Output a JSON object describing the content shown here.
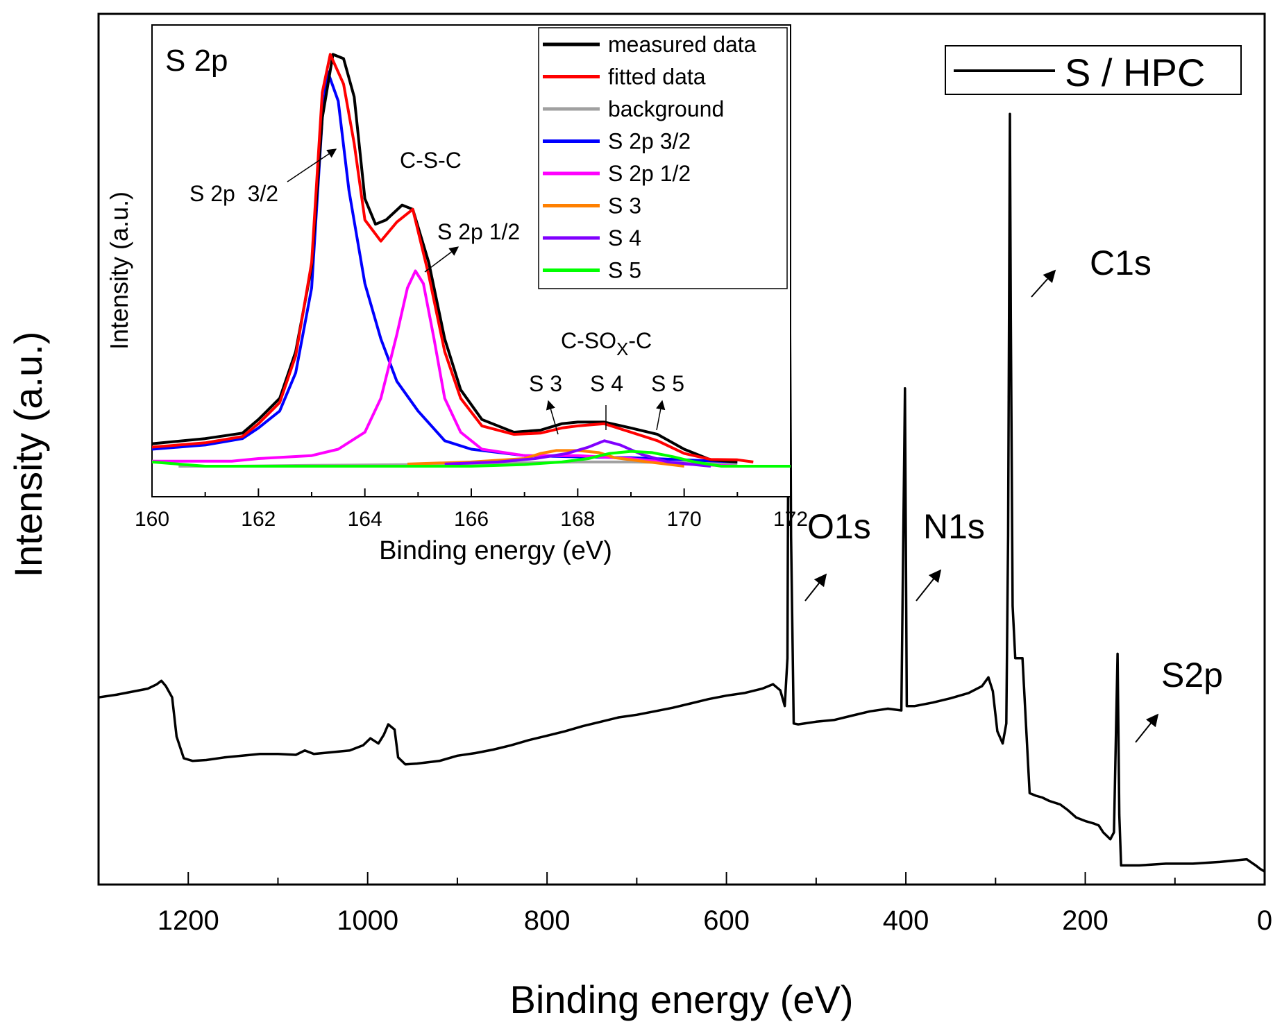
{
  "chart_data": [
    {
      "id": "survey",
      "type": "line",
      "xlabel": "Binding energy (eV)",
      "ylabel": "Intensity (a.u.)",
      "xlim": [
        1300,
        0
      ],
      "ylim": [
        0,
        100
      ],
      "xticks": [
        1200,
        1000,
        800,
        600,
        400,
        200,
        0
      ],
      "legend": {
        "position": "top-right",
        "entries": [
          {
            "label": "S / HPC",
            "color": "#000000"
          }
        ]
      },
      "series": [
        {
          "name": "S / HPC",
          "color": "#000000",
          "points": [
            [
              1300,
              21.5
            ],
            [
              1280,
              21.8
            ],
            [
              1260,
              22.2
            ],
            [
              1245,
              22.5
            ],
            [
              1235,
              23.0
            ],
            [
              1230,
              23.4
            ],
            [
              1225,
              22.8
            ],
            [
              1218,
              21.5
            ],
            [
              1213,
              17.0
            ],
            [
              1205,
              14.5
            ],
            [
              1195,
              14.2
            ],
            [
              1180,
              14.3
            ],
            [
              1160,
              14.6
            ],
            [
              1140,
              14.8
            ],
            [
              1120,
              15.0
            ],
            [
              1100,
              15.0
            ],
            [
              1080,
              14.9
            ],
            [
              1070,
              15.4
            ],
            [
              1060,
              15.0
            ],
            [
              1040,
              15.2
            ],
            [
              1020,
              15.4
            ],
            [
              1005,
              16.0
            ],
            [
              997,
              16.8
            ],
            [
              988,
              16.2
            ],
            [
              982,
              17.2
            ],
            [
              977,
              18.4
            ],
            [
              970,
              17.8
            ],
            [
              966,
              14.6
            ],
            [
              958,
              13.8
            ],
            [
              945,
              13.9
            ],
            [
              920,
              14.2
            ],
            [
              900,
              14.8
            ],
            [
              880,
              15.1
            ],
            [
              860,
              15.5
            ],
            [
              840,
              16.0
            ],
            [
              820,
              16.6
            ],
            [
              800,
              17.1
            ],
            [
              780,
              17.6
            ],
            [
              760,
              18.2
            ],
            [
              740,
              18.7
            ],
            [
              720,
              19.2
            ],
            [
              700,
              19.5
            ],
            [
              680,
              19.9
            ],
            [
              660,
              20.3
            ],
            [
              640,
              20.8
            ],
            [
              620,
              21.3
            ],
            [
              600,
              21.7
            ],
            [
              580,
              22.0
            ],
            [
              560,
              22.5
            ],
            [
              548,
              23.0
            ],
            [
              540,
              22.3
            ],
            [
              535,
              20.5
            ],
            [
              532,
              26.0
            ],
            [
              530,
              82.0
            ],
            [
              528,
              40.0
            ],
            [
              525,
              18.5
            ],
            [
              520,
              18.4
            ],
            [
              500,
              18.7
            ],
            [
              480,
              18.9
            ],
            [
              460,
              19.4
            ],
            [
              440,
              19.9
            ],
            [
              420,
              20.2
            ],
            [
              405,
              20.0
            ],
            [
              401,
              57.0
            ],
            [
              399,
              20.5
            ],
            [
              390,
              20.5
            ],
            [
              370,
              20.9
            ],
            [
              350,
              21.4
            ],
            [
              330,
              22.0
            ],
            [
              315,
              22.8
            ],
            [
              308,
              23.8
            ],
            [
              303,
              22.2
            ],
            [
              298,
              17.6
            ],
            [
              292,
              16.2
            ],
            [
              288,
              18.5
            ],
            [
              286,
              40.0
            ],
            [
              284,
              88.5
            ],
            [
              283,
              65.0
            ],
            [
              281,
              32.0
            ],
            [
              278,
              26.0
            ],
            [
              270,
              26.0
            ],
            [
              262,
              10.5
            ],
            [
              255,
              10.2
            ],
            [
              248,
              10.0
            ],
            [
              240,
              9.6
            ],
            [
              228,
              9.2
            ],
            [
              220,
              8.6
            ],
            [
              210,
              7.7
            ],
            [
              200,
              7.3
            ],
            [
              190,
              7.0
            ],
            [
              185,
              6.8
            ],
            [
              180,
              6.0
            ],
            [
              172,
              5.2
            ],
            [
              168,
              6.0
            ],
            [
              164,
              26.5
            ],
            [
              162,
              8.0
            ],
            [
              160,
              2.2
            ],
            [
              140,
              2.2
            ],
            [
              110,
              2.4
            ],
            [
              80,
              2.4
            ],
            [
              50,
              2.6
            ],
            [
              30,
              2.8
            ],
            [
              20,
              2.9
            ],
            [
              10,
              2.2
            ],
            [
              5,
              1.8
            ],
            [
              0,
              1.5
            ]
          ]
        }
      ],
      "annotations": [
        {
          "label": "O1s"
        },
        {
          "label": "N1s"
        },
        {
          "label": "C1s"
        },
        {
          "label": "S2p"
        }
      ]
    },
    {
      "id": "inset",
      "type": "line",
      "title": "S 2p",
      "xlabel": "Binding energy (eV)",
      "ylabel": "Intensity (a.u.)",
      "xlim": [
        160,
        172
      ],
      "ylim": [
        0,
        100
      ],
      "xticks": [
        160,
        162,
        164,
        166,
        168,
        170,
        172
      ],
      "legend": {
        "position": "top-right"
      },
      "series": [
        {
          "name": "measured data",
          "color": "#000000",
          "points": [
            [
              160,
              5.3
            ],
            [
              161,
              6.5
            ],
            [
              161.7,
              7.8
            ],
            [
              162,
              11.0
            ],
            [
              162.4,
              16.0
            ],
            [
              162.7,
              27.0
            ],
            [
              163.0,
              47.0
            ],
            [
              163.2,
              82.0
            ],
            [
              163.4,
              97.0
            ],
            [
              163.6,
              96.0
            ],
            [
              163.8,
              87.0
            ],
            [
              164.0,
              63.0
            ],
            [
              164.2,
              57.0
            ],
            [
              164.4,
              58.0
            ],
            [
              164.7,
              61.5
            ],
            [
              164.9,
              60.5
            ],
            [
              165.2,
              48.0
            ],
            [
              165.5,
              30.0
            ],
            [
              165.8,
              18.0
            ],
            [
              166.2,
              11.0
            ],
            [
              166.8,
              8.0
            ],
            [
              167.3,
              8.5
            ],
            [
              167.7,
              10.0
            ],
            [
              168.0,
              10.4
            ],
            [
              168.5,
              10.4
            ],
            [
              169.0,
              9.0
            ],
            [
              169.5,
              7.5
            ],
            [
              170.0,
              4.0
            ],
            [
              170.5,
              1.5
            ],
            [
              171,
              1.0
            ]
          ]
        },
        {
          "name": "fitted data",
          "color": "#ff0000",
          "points": [
            [
              160,
              4.5
            ],
            [
              161,
              5.5
            ],
            [
              161.7,
              7.0
            ],
            [
              162,
              10.0
            ],
            [
              162.4,
              15.0
            ],
            [
              162.7,
              26.0
            ],
            [
              163.0,
              48.0
            ],
            [
              163.2,
              88.0
            ],
            [
              163.35,
              97.0
            ],
            [
              163.6,
              90.0
            ],
            [
              163.8,
              76.0
            ],
            [
              164.0,
              58.0
            ],
            [
              164.3,
              53.0
            ],
            [
              164.6,
              57.5
            ],
            [
              164.9,
              60.5
            ],
            [
              165.2,
              45.0
            ],
            [
              165.5,
              27.0
            ],
            [
              165.8,
              16.0
            ],
            [
              166.2,
              9.5
            ],
            [
              166.8,
              7.5
            ],
            [
              167.3,
              7.8
            ],
            [
              167.7,
              9.0
            ],
            [
              168.0,
              9.5
            ],
            [
              168.5,
              10.0
            ],
            [
              169.0,
              8.0
            ],
            [
              169.5,
              6.0
            ],
            [
              170.0,
              3.0
            ],
            [
              170.5,
              1.6
            ],
            [
              171,
              1.5
            ],
            [
              171.3,
              1.0
            ]
          ]
        },
        {
          "name": "background",
          "color": "#a0a0a0",
          "points": [
            [
              160.5,
              0.0
            ],
            [
              161.5,
              0.0
            ],
            [
              163,
              0.2
            ],
            [
              165,
              0.4
            ],
            [
              167,
              0.8
            ],
            [
              168,
              1.0
            ],
            [
              169,
              1.0
            ],
            [
              170,
              0.8
            ],
            [
              171,
              0.5
            ]
          ]
        },
        {
          "name": "S 2p  3/2",
          "color": "#0000ff",
          "points": [
            [
              160,
              4.0
            ],
            [
              161,
              5.0
            ],
            [
              161.7,
              6.5
            ],
            [
              162,
              9.0
            ],
            [
              162.4,
              13.0
            ],
            [
              162.7,
              22.0
            ],
            [
              163.0,
              42.0
            ],
            [
              163.2,
              82.0
            ],
            [
              163.3,
              93.0
            ],
            [
              163.5,
              86.0
            ],
            [
              163.7,
              65.0
            ],
            [
              164.0,
              43.0
            ],
            [
              164.3,
              30.0
            ],
            [
              164.6,
              20.0
            ],
            [
              165.0,
              13.0
            ],
            [
              165.5,
              6.0
            ],
            [
              166,
              4.0
            ],
            [
              167,
              2.5
            ],
            [
              168,
              2.2
            ],
            [
              169,
              2.0
            ],
            [
              170,
              1.5
            ],
            [
              171,
              1.0
            ]
          ]
        },
        {
          "name": "S 2p  1/2",
          "color": "#ff00ff",
          "points": [
            [
              160,
              1.2
            ],
            [
              161.5,
              1.2
            ],
            [
              162,
              1.8
            ],
            [
              163,
              2.5
            ],
            [
              163.5,
              4.0
            ],
            [
              164,
              8.0
            ],
            [
              164.3,
              16.0
            ],
            [
              164.6,
              31.0
            ],
            [
              164.8,
              42.0
            ],
            [
              164.95,
              46.0
            ],
            [
              165.1,
              43.0
            ],
            [
              165.3,
              30.0
            ],
            [
              165.5,
              16.0
            ],
            [
              165.8,
              8.0
            ],
            [
              166.2,
              4.0
            ],
            [
              167,
              2.5
            ],
            [
              168,
              2.5
            ],
            [
              169,
              1.8
            ],
            [
              170,
              0.5
            ],
            [
              171,
              0.0
            ]
          ]
        },
        {
          "name": "S 3",
          "color": "#ff8000",
          "points": [
            [
              164.8,
              0.5
            ],
            [
              166,
              1.0
            ],
            [
              167,
              1.8
            ],
            [
              167.3,
              3.0
            ],
            [
              167.6,
              3.7
            ],
            [
              168.0,
              3.7
            ],
            [
              168.4,
              3.2
            ],
            [
              168.7,
              2.0
            ],
            [
              169.2,
              1.2
            ],
            [
              170,
              0.0
            ]
          ]
        },
        {
          "name": "S 4",
          "color": "#8000ff",
          "points": [
            [
              165.5,
              0.5
            ],
            [
              166.5,
              1.0
            ],
            [
              167.2,
              1.8
            ],
            [
              167.8,
              3.0
            ],
            [
              168.2,
              4.5
            ],
            [
              168.5,
              6.0
            ],
            [
              168.8,
              5.0
            ],
            [
              169.2,
              2.8
            ],
            [
              169.7,
              1.0
            ],
            [
              170.5,
              0.0
            ]
          ]
        },
        {
          "name": "S 5",
          "color": "#00ff00",
          "points": [
            [
              160,
              1.0
            ],
            [
              161,
              0.0
            ],
            [
              166,
              0.0
            ],
            [
              167,
              0.4
            ],
            [
              167.7,
              1.0
            ],
            [
              168.2,
              1.8
            ],
            [
              168.6,
              3.0
            ],
            [
              169.0,
              3.5
            ],
            [
              169.4,
              3.2
            ],
            [
              169.8,
              2.2
            ],
            [
              170.2,
              1.0
            ],
            [
              170.7,
              0.0
            ],
            [
              172,
              0.0
            ]
          ]
        }
      ],
      "annotations": [
        {
          "label": "S 2p  3/2"
        },
        {
          "label": "C-S-C"
        },
        {
          "label": "S 2p 1/2"
        },
        {
          "label": "C-SO",
          "sub": "X",
          "suffix": "-C"
        },
        {
          "label": "S 3"
        },
        {
          "label": "S 4"
        },
        {
          "label": "S 5"
        }
      ]
    }
  ]
}
